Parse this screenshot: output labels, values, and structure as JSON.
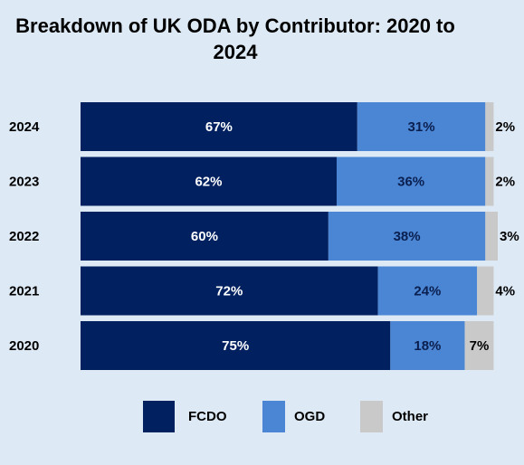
{
  "chart_data": {
    "type": "stacked-bar-horizontal",
    "title": "Breakdown of UK ODA by Contributor: 2020 to 2024",
    "categories": [
      "2024",
      "2023",
      "2022",
      "2021",
      "2020"
    ],
    "series": [
      {
        "name": "FCDO",
        "color": "#002060",
        "values": [
          67,
          62,
          60,
          72,
          75
        ],
        "value_labels": [
          "67%",
          "62%",
          "60%",
          "72%",
          "75%"
        ]
      },
      {
        "name": "OGD",
        "color": "#4a86d4",
        "values": [
          31,
          36,
          38,
          24,
          18
        ],
        "value_labels": [
          "31%",
          "36%",
          "38%",
          "24%",
          "18%"
        ]
      },
      {
        "name": "Other",
        "color": "#c9c9c9",
        "values": [
          2,
          2,
          3,
          4,
          7
        ],
        "value_labels": [
          "2%",
          "2%",
          "3%",
          "4%",
          "7%"
        ]
      }
    ],
    "legend": "bottom"
  }
}
